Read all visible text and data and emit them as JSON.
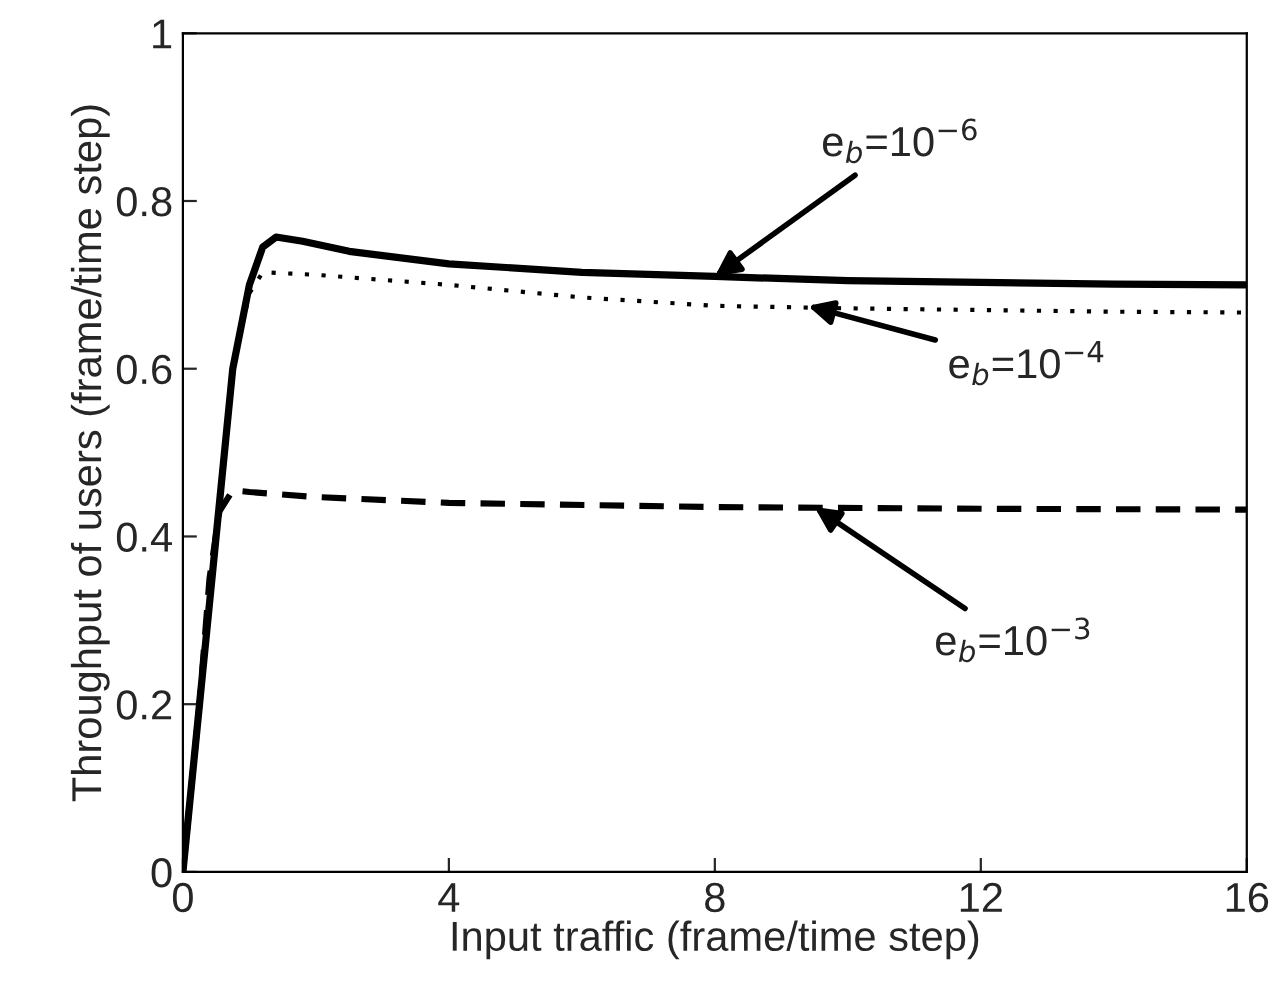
{
  "chart_data": {
    "type": "line",
    "xlabel": "Input traffic (frame/time step)",
    "ylabel": "Throughput of users (frame/time step)",
    "xlim": [
      0,
      16
    ],
    "ylim": [
      0,
      1
    ],
    "xticks": [
      0,
      4,
      8,
      12,
      16
    ],
    "yticks": [
      0,
      0.2,
      0.4,
      0.6,
      0.8,
      1
    ],
    "grid": false,
    "legend": false,
    "series": [
      {
        "color": "#000000",
        "line_style": "solid",
        "x": [
          0,
          0.25,
          0.5,
          0.75,
          1,
          1.2,
          1.4,
          1.8,
          2.5,
          4,
          6,
          8,
          10,
          12,
          14,
          16
        ],
        "values": [
          0,
          0.2,
          0.4,
          0.6,
          0.7,
          0.745,
          0.757,
          0.752,
          0.74,
          0.725,
          0.715,
          0.71,
          0.705,
          0.703,
          0.701,
          0.7
        ]
      },
      {
        "color": "#000000",
        "line_style": "dotted",
        "x": [
          0,
          0.25,
          0.5,
          0.75,
          1,
          1.2,
          2,
          4,
          6,
          8,
          10,
          12,
          14,
          16
        ],
        "values": [
          0,
          0.2,
          0.4,
          0.6,
          0.69,
          0.715,
          0.712,
          0.7,
          0.685,
          0.675,
          0.672,
          0.67,
          0.668,
          0.667
        ]
      },
      {
        "color": "#000000",
        "line_style": "dashed",
        "x": [
          0,
          0.25,
          0.4,
          0.55,
          0.75,
          1,
          2,
          4,
          8,
          12,
          16
        ],
        "values": [
          0,
          0.2,
          0.35,
          0.43,
          0.455,
          0.453,
          0.447,
          0.44,
          0.435,
          0.433,
          0.432
        ]
      }
    ],
    "annotations": [
      {
        "text": "e$_{b}$=10$^{−6}$",
        "x": 8,
        "y": 0.71
      },
      {
        "text": "e$_{b}$=10$^{−4}$",
        "x": 9.4,
        "y": 0.675
      },
      {
        "text": "e$_{b}$=10$^{−3}$",
        "x": 9.5,
        "y": 0.435
      }
    ]
  }
}
